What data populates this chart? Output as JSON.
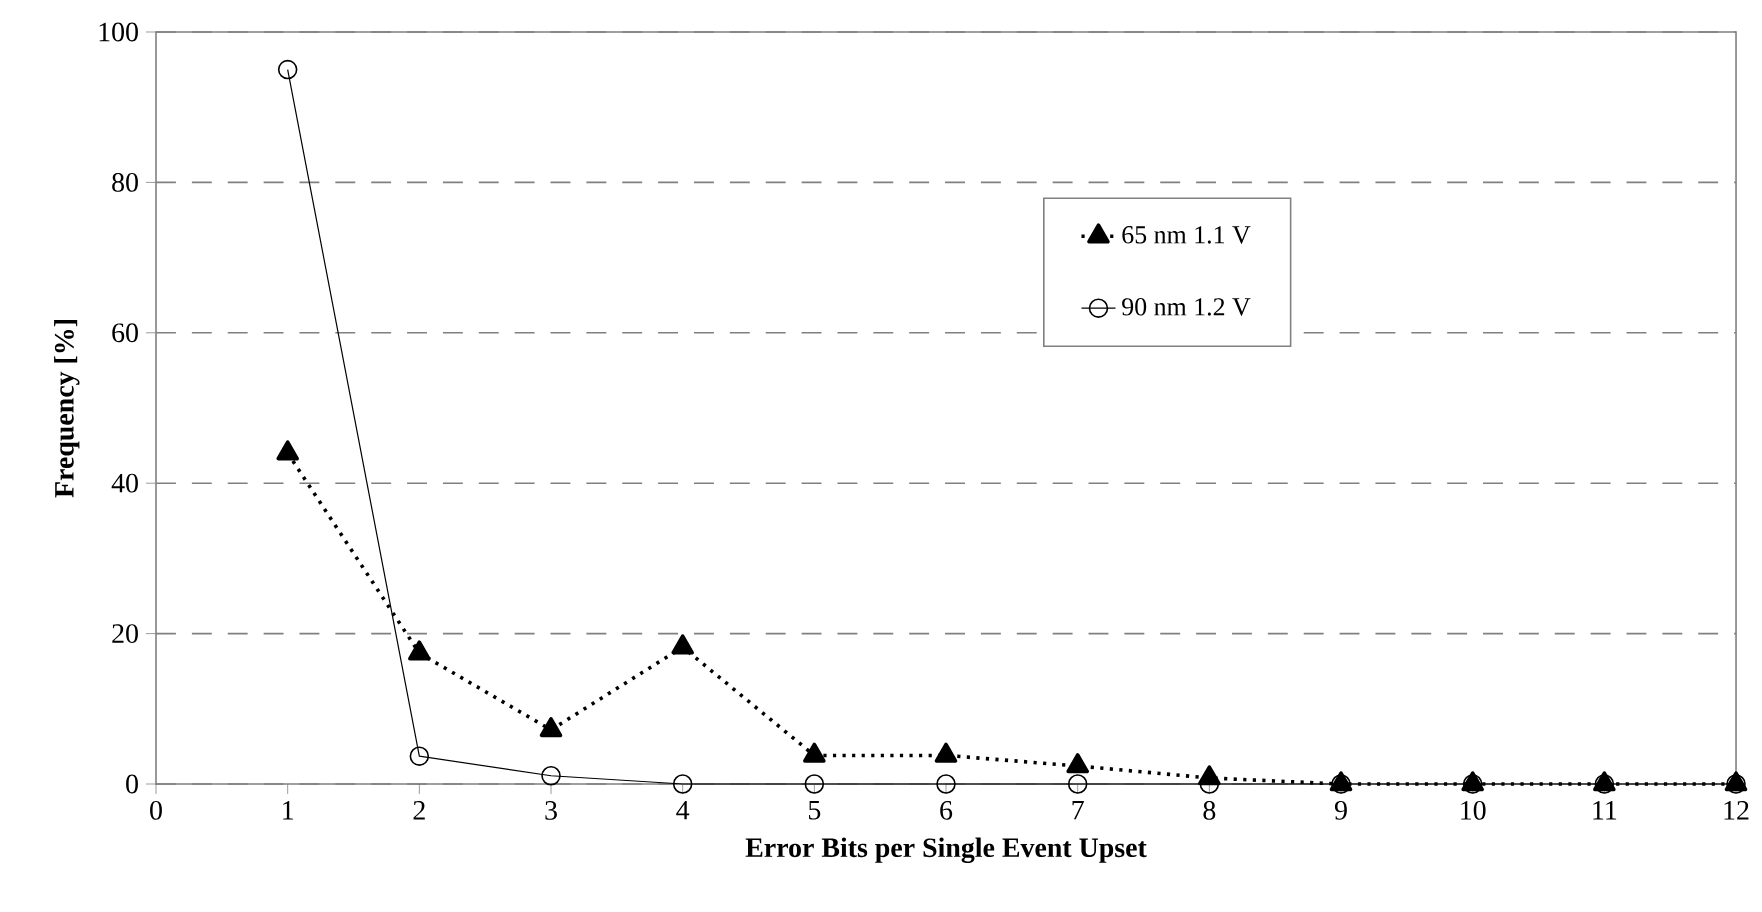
{
  "chart_data": {
    "type": "line",
    "xlabel": "Error Bits per Single Event Upset",
    "ylabel": "Frequency [%]",
    "x": [
      1,
      2,
      3,
      4,
      5,
      6,
      7,
      8,
      9,
      10,
      11,
      12
    ],
    "series": [
      {
        "name": "65 nm 1.1 V",
        "color": "#000000",
        "marker": "triangle",
        "line_style": "dotted",
        "values": [
          44,
          17.4,
          7.2,
          18.2,
          3.8,
          3.8,
          2.4,
          0.8,
          0,
          0,
          0,
          0
        ]
      },
      {
        "name": "90 nm 1.2 V",
        "color": "#000000",
        "marker": "circle",
        "line_style": "solid",
        "values": [
          95,
          3.7,
          1.1,
          0,
          0,
          0,
          0,
          0,
          0,
          0,
          0,
          0
        ]
      }
    ],
    "xlim": [
      0,
      12
    ],
    "xticks": [
      0,
      1,
      2,
      3,
      4,
      5,
      6,
      7,
      8,
      9,
      10,
      11,
      12
    ],
    "ylim": [
      0,
      100
    ],
    "yticks": [
      0,
      20,
      40,
      60,
      80,
      100
    ],
    "grid": "y",
    "legend": "right"
  }
}
